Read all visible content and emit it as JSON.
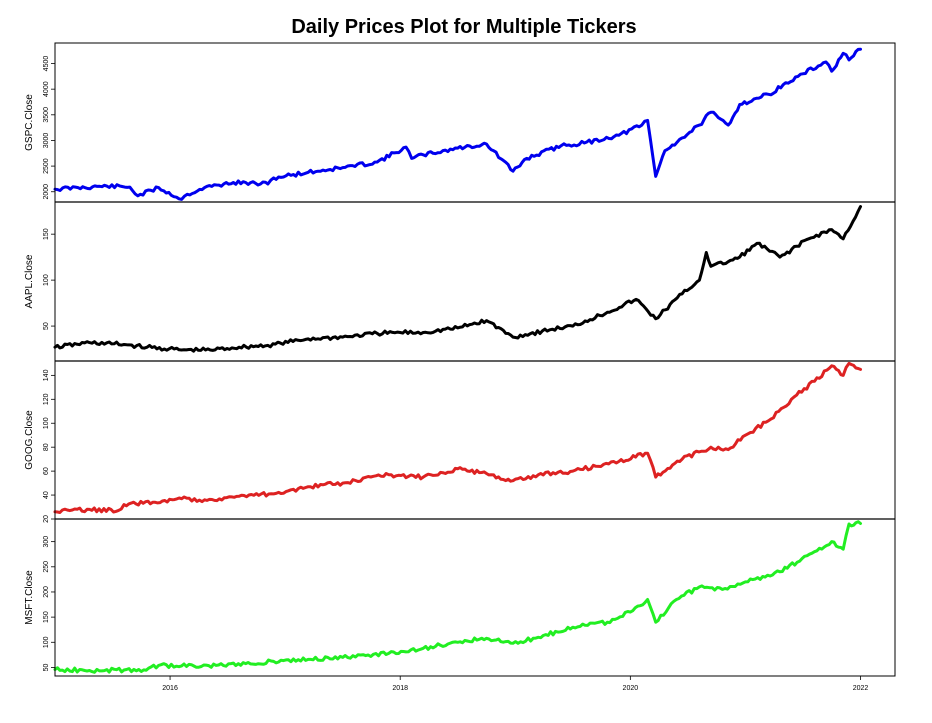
{
  "chart_data": {
    "type": "line",
    "title": "Daily Prices Plot for Multiple Tickers",
    "x_tick_labels": [
      "2016",
      "2018",
      "2020",
      "2022"
    ],
    "x_tick_positions": [
      2016,
      2018,
      2020,
      2022
    ],
    "xlim": [
      2015.0,
      2022.3
    ],
    "series": [
      {
        "name": "GSPC.Close",
        "color": "#0000ee",
        "ylim": [
          1800,
          4900
        ],
        "yticks": [
          2000,
          2500,
          3000,
          3500,
          4000,
          4500
        ],
        "x": [
          2015.0,
          2015.2,
          2015.45,
          2015.65,
          2015.72,
          2015.9,
          2016.1,
          2016.15,
          2016.3,
          2016.55,
          2016.85,
          2016.9,
          2017.2,
          2017.5,
          2017.8,
          2018.05,
          2018.1,
          2018.2,
          2018.5,
          2018.75,
          2018.98,
          2019.1,
          2019.4,
          2019.6,
          2019.9,
          2020.1,
          2020.15,
          2020.22,
          2020.3,
          2020.45,
          2020.6,
          2020.7,
          2020.85,
          2020.95,
          2021.2,
          2021.5,
          2021.7,
          2021.75,
          2021.85,
          2021.9,
          2022.0
        ],
        "values": [
          2050,
          2080,
          2110,
          2090,
          1920,
          2080,
          1850,
          1950,
          2080,
          2180,
          2150,
          2270,
          2380,
          2470,
          2580,
          2870,
          2650,
          2720,
          2850,
          2930,
          2400,
          2650,
          2900,
          2950,
          3100,
          3300,
          3390,
          2300,
          2800,
          3050,
          3300,
          3550,
          3300,
          3700,
          3900,
          4300,
          4530,
          4350,
          4700,
          4570,
          4780
        ]
      },
      {
        "name": "AAPL.Close",
        "color": "#000000",
        "ylim": [
          12,
          185
        ],
        "yticks": [
          50,
          100,
          150
        ],
        "x": [
          2015.0,
          2015.3,
          2015.6,
          2015.8,
          2016.1,
          2016.35,
          2016.6,
          2016.85,
          2017.2,
          2017.5,
          2017.8,
          2018.0,
          2018.2,
          2018.5,
          2018.75,
          2018.98,
          2019.3,
          2019.5,
          2019.8,
          2020.05,
          2020.22,
          2020.45,
          2020.6,
          2020.66,
          2020.7,
          2020.85,
          2020.95,
          2021.1,
          2021.3,
          2021.55,
          2021.75,
          2021.85,
          2022.0
        ],
        "values": [
          27,
          32,
          30,
          27,
          24,
          24,
          27,
          29,
          36,
          38,
          42,
          43,
          43,
          48,
          56,
          38,
          46,
          50,
          65,
          79,
          58,
          85,
          100,
          130,
          115,
          120,
          125,
          140,
          125,
          145,
          155,
          145,
          180
        ]
      },
      {
        "name": "GOOG.Close",
        "color": "#dd2222",
        "ylim": [
          20,
          152
        ],
        "yticks": [
          20,
          40,
          60,
          80,
          100,
          120,
          140
        ],
        "x": [
          2015.0,
          2015.3,
          2015.55,
          2015.6,
          2015.85,
          2016.1,
          2016.3,
          2016.6,
          2016.9,
          2017.2,
          2017.5,
          2017.9,
          2018.2,
          2018.5,
          2018.75,
          2018.98,
          2019.2,
          2019.5,
          2019.9,
          2020.15,
          2020.22,
          2020.45,
          2020.7,
          2020.85,
          2021.0,
          2021.2,
          2021.4,
          2021.6,
          2021.75,
          2021.85,
          2021.9,
          2022.0
        ],
        "values": [
          26,
          28,
          27,
          32,
          34,
          37,
          36,
          39,
          41,
          47,
          50,
          57,
          55,
          62,
          58,
          52,
          57,
          60,
          68,
          75,
          55,
          70,
          80,
          78,
          90,
          102,
          120,
          135,
          148,
          140,
          150,
          145
        ]
      },
      {
        "name": "MSFT.Close",
        "color": "#22ee22",
        "ylim": [
          33,
          345
        ],
        "yticks": [
          50,
          100,
          150,
          200,
          250,
          300
        ],
        "x": [
          2015.0,
          2015.3,
          2015.6,
          2015.75,
          2015.9,
          2016.1,
          2016.4,
          2016.7,
          2016.9,
          2017.2,
          2017.5,
          2017.9,
          2018.2,
          2018.5,
          2018.75,
          2018.98,
          2019.2,
          2019.5,
          2019.8,
          2020.0,
          2020.15,
          2020.22,
          2020.4,
          2020.6,
          2020.8,
          2021.0,
          2021.3,
          2021.6,
          2021.75,
          2021.85,
          2021.9,
          2022.0
        ],
        "values": [
          46,
          44,
          45,
          42,
          54,
          53,
          54,
          57,
          62,
          66,
          70,
          78,
          88,
          100,
          108,
          98,
          110,
          130,
          140,
          160,
          185,
          140,
          185,
          210,
          205,
          220,
          240,
          280,
          300,
          285,
          335,
          336
        ]
      }
    ]
  }
}
